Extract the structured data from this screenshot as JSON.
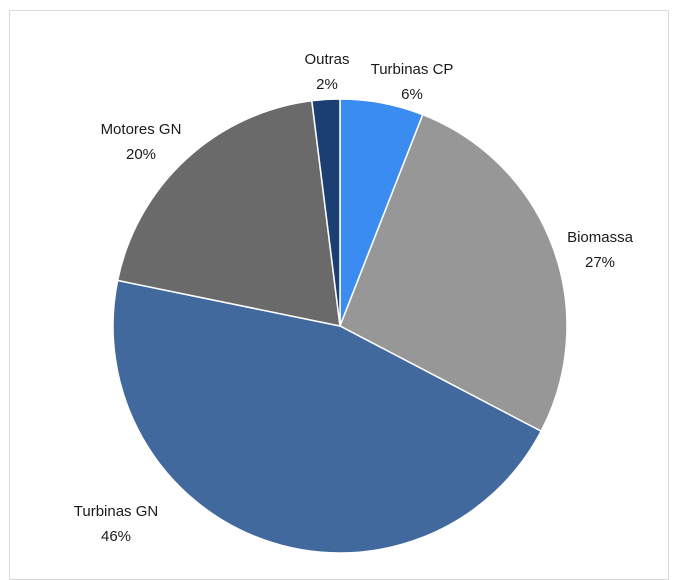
{
  "chart_data": {
    "type": "pie",
    "title": "",
    "slices": [
      {
        "label": "Turbinas CP",
        "value": 6,
        "value_label": "6%",
        "color": "#3a8cf0"
      },
      {
        "label": "Biomassa",
        "value": 27,
        "value_label": "27%",
        "color": "#979797"
      },
      {
        "label": "Turbinas GN",
        "value": 46,
        "value_label": "46%",
        "color": "#41699e"
      },
      {
        "label": "Motores GN",
        "value": 20,
        "value_label": "20%",
        "color": "#6a6a6a"
      },
      {
        "label": "Outras",
        "value": 2,
        "value_label": "2%",
        "color": "#1c3f73"
      }
    ],
    "start_angle_deg": 0,
    "direction": "clockwise",
    "legend": "none",
    "labels": "outside"
  }
}
